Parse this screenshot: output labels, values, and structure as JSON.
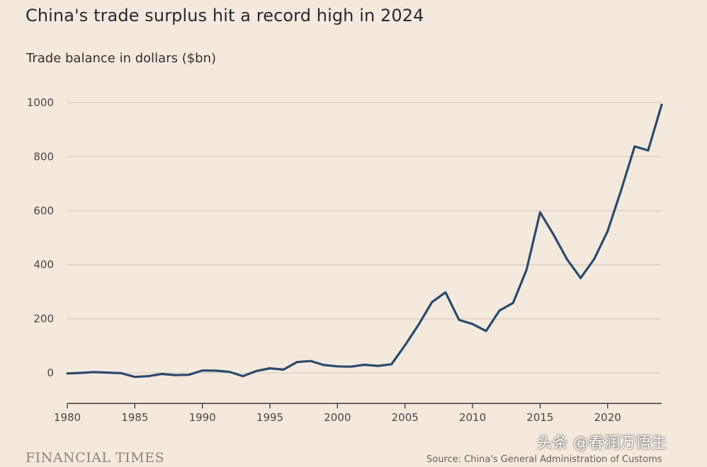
{
  "header": {
    "title": "China's trade surplus hit a record high in 2024",
    "subtitle": "Trade balance in dollars ($bn)"
  },
  "footer": {
    "brand": "FINANCIAL TIMES",
    "source": "Source: China's General Administration of Customs"
  },
  "watermark": "头条 @春润万悟生",
  "colors": {
    "line": "#2a4a6b",
    "background": "#f4e9dd",
    "grid": "#d8cdbf"
  },
  "chart_data": {
    "type": "line",
    "title": "China's trade surplus hit a record high in 2024",
    "ylabel": "Trade balance in dollars ($bn)",
    "xlabel": "",
    "xlim": [
      1980,
      2024
    ],
    "ylim": [
      -100,
      1000
    ],
    "yticks": [
      0,
      200,
      400,
      600,
      800,
      1000
    ],
    "xticks": [
      1980,
      1985,
      1990,
      1995,
      2000,
      2005,
      2010,
      2015,
      2020
    ],
    "grid": true,
    "x": [
      1980,
      1981,
      1982,
      1983,
      1984,
      1985,
      1986,
      1987,
      1988,
      1989,
      1990,
      1991,
      1992,
      1993,
      1994,
      1995,
      1996,
      1997,
      1998,
      1999,
      2000,
      2001,
      2002,
      2003,
      2004,
      2005,
      2006,
      2007,
      2008,
      2009,
      2010,
      2011,
      2012,
      2013,
      2014,
      2015,
      2016,
      2017,
      2018,
      2019,
      2020,
      2021,
      2022,
      2023,
      2024
    ],
    "series": [
      {
        "values": [
          -2,
          0,
          3,
          1,
          -1,
          -15,
          -12,
          -4,
          -8,
          -7,
          9,
          8,
          4,
          -12,
          7,
          17,
          12,
          40,
          44,
          29,
          24,
          23,
          30,
          26,
          32,
          102,
          178,
          262,
          298,
          196,
          181,
          155,
          231,
          259,
          382,
          594,
          511,
          420,
          351,
          421,
          524,
          676,
          838,
          823,
          992
        ]
      }
    ]
  }
}
